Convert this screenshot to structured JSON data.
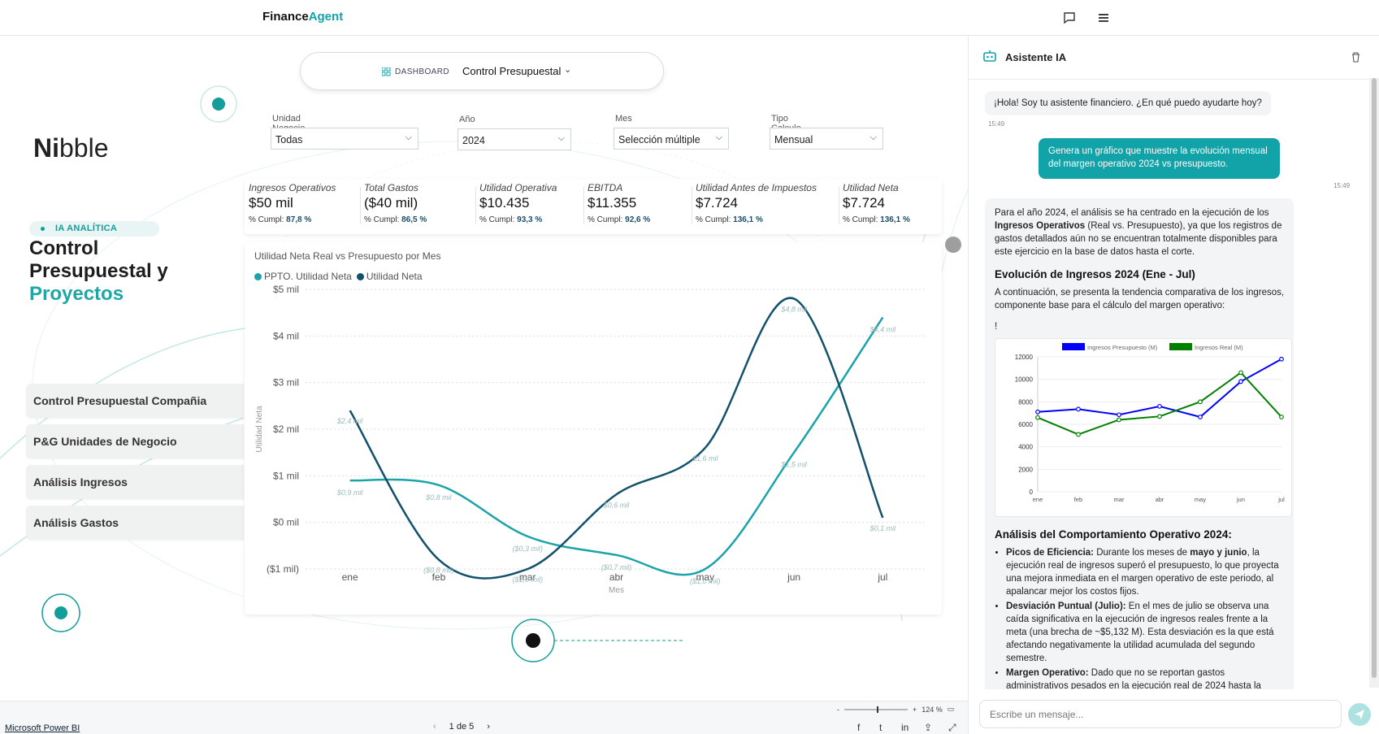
{
  "app": {
    "brand_part1": "Finance",
    "brand_part2": "Agent"
  },
  "dashboard": {
    "label": "DASHBOARD",
    "selected": "Control Presupuestal"
  },
  "sidebar": {
    "logo_bold": "Ni",
    "logo_light": "bble",
    "tag": "IA ANALÍTICA",
    "title_line1": "Control",
    "title_line2": "Presupuestal y",
    "title_accent": "Proyectos",
    "items": [
      {
        "label": "Control Presupuestal Compañia"
      },
      {
        "label": "P&G Unidades de Negocio"
      },
      {
        "label": "Análisis Ingresos"
      },
      {
        "label": "Análisis Gastos"
      }
    ]
  },
  "filters": [
    {
      "label": "Unidad Negocio",
      "value": "Todas"
    },
    {
      "label": "Año",
      "value": "2024"
    },
    {
      "label": "Mes",
      "value": "Selección múltiple"
    },
    {
      "label": "Tipo Calculo",
      "value": "Mensual"
    }
  ],
  "kpis": [
    {
      "title": "Ingresos Operativos",
      "value": "$50 mil",
      "cumpl_label": "% Cumpl:",
      "cumpl": "87,8 %"
    },
    {
      "title": "Total Gastos",
      "value": "($40 mil)",
      "cumpl_label": "% Cumpl:",
      "cumpl": "86,5 %"
    },
    {
      "title": "Utilidad Operativa",
      "value": "$10.435",
      "cumpl_label": "% Cumpl:",
      "cumpl": "93,3 %"
    },
    {
      "title": "EBITDA",
      "value": "$11.355",
      "cumpl_label": "% Cumpl:",
      "cumpl": "92,6 %"
    },
    {
      "title": "Utilidad Antes de Impuestos",
      "value": "$7.724",
      "cumpl_label": "% Cumpl:",
      "cumpl": "136,1 %"
    },
    {
      "title": "Utilidad Neta",
      "value": "$7.724",
      "cumpl_label": "% Cumpl:",
      "cumpl": "136,1 %"
    }
  ],
  "chart_data": {
    "type": "line",
    "title": "Utilidad Neta Real vs Presupuesto por Mes",
    "xlabel": "Mes",
    "ylabel": "Utilidad Neta",
    "categories": [
      "ene",
      "feb",
      "mar",
      "abr",
      "may",
      "jun",
      "jul"
    ],
    "ylim": [
      -1,
      5
    ],
    "yticks": [
      -1,
      0,
      1,
      2,
      3,
      4,
      5
    ],
    "ytick_labels": [
      "($1 mil)",
      "$0 mil",
      "$1 mil",
      "$2 mil",
      "$3 mil",
      "$4 mil",
      "$5 mil"
    ],
    "grid": true,
    "legend_position": "top-left",
    "series": [
      {
        "name": "PPTO. Utilidad Neta",
        "color": "#1aa3a8",
        "values": [
          0.9,
          0.8,
          -0.3,
          -0.7,
          -1.0,
          1.5,
          4.4
        ],
        "labels": [
          "$0,9 mil",
          "$0,8 mil",
          "($0,3 mil)",
          "($0,7 mil)",
          "($1,0 mil)",
          "$1,5 mil",
          "$4,4 mil"
        ]
      },
      {
        "name": "Utilidad Neta",
        "color": "#12516b",
        "values": [
          2.4,
          -0.8,
          -1.0,
          0.6,
          1.6,
          4.8,
          0.1
        ],
        "labels": [
          "$2,4 mil",
          "($0,8 mil)",
          "($1,0 mil)",
          "$0,6 mil",
          "$1,6 mil",
          "$4,8 mil",
          "$0,1 mil"
        ]
      }
    ]
  },
  "footer": {
    "powerbi": "Microsoft Power BI",
    "page": "1 de 5",
    "zoom": "124 %"
  },
  "assistant": {
    "title": "Asistente IA",
    "greeting": "¡Hola! Soy tu asistente financiero. ¿En qué puedo ayudarte hoy?",
    "greeting_time": "15:49",
    "user_msg": "Genera un gráfico que muestre la evolución mensual del margen operativo 2024 vs presupuesto.",
    "user_time": "15:49",
    "resp_p1_a": "Para el año 2024, el análisis se ha centrado en la ejecución de los ",
    "resp_p1_b": "Ingresos Operativos",
    "resp_p1_c": " (Real vs. Presupuesto), ya que los registros de gastos detallados aún no se encuentran totalmente disponibles para este ejercicio en la base de datos hasta el corte.",
    "resp_h1": "Evolución de Ingresos 2024 (Ene - Jul)",
    "resp_p2": "A continuación, se presenta la tendencia comparativa de los ingresos, componente base para el cálculo del margen operativo:",
    "resp_bang": "!",
    "resp_h2": "Análisis del Comportamiento Operativo 2024:",
    "bullets": [
      {
        "bold": "Picos de Eficiencia:",
        "text_a": " Durante los meses de ",
        "bold2": "mayo y junio",
        "text_b": ", la ejecución real de ingresos superó el presupuesto, lo que proyecta una mejora inmediata en el margen operativo de este periodo, al apalancar mejor los costos fijos."
      },
      {
        "bold": "Desviación Puntual (Julio):",
        "text_a": " En el mes de julio se observa una caída significativa en la ejecución de ingresos reales frente a la meta (una brecha de ~$5,132 M). Esta desviación es la que está afectando negativamente la utilidad acumulada del segundo semestre.",
        "bold2": "",
        "text_b": ""
      },
      {
        "bold": "Margen Operativo:",
        "text_a": " Dado que no se reportan gastos administrativos pesados en la ejecución real de 2024 hasta la",
        "bold2": "",
        "text_b": ""
      }
    ],
    "input_placeholder": "Escribe un mensaje...",
    "mini_chart": {
      "type": "line",
      "categories": [
        "ene",
        "feb",
        "mar",
        "abr",
        "may",
        "jun",
        "jul"
      ],
      "ylim": [
        0,
        12000
      ],
      "yticks": [
        0,
        2000,
        4000,
        6000,
        8000,
        10000,
        12000
      ],
      "series": [
        {
          "name": "Ingresos Presupuesto (M)",
          "color": "#0000ff",
          "values": [
            7100,
            7350,
            6850,
            7600,
            6650,
            9800,
            11800
          ]
        },
        {
          "name": "Ingresos Real (M)",
          "color": "#008000",
          "values": [
            6600,
            5100,
            6400,
            6700,
            8000,
            10600,
            6650
          ]
        }
      ]
    }
  }
}
